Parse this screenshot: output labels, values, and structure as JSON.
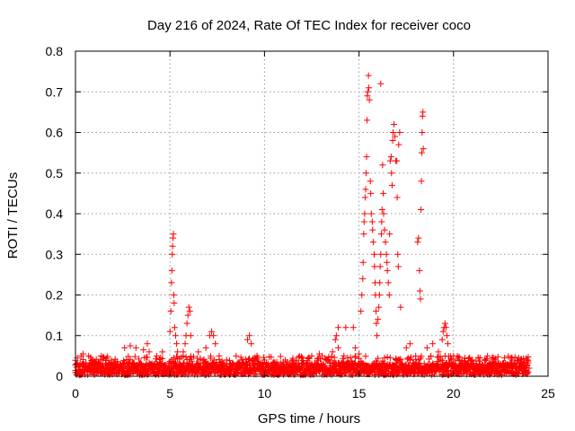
{
  "chart_data": {
    "type": "scatter",
    "title": "Day 216 of 2024, Rate Of TEC Index for receiver coco",
    "xlabel": "GPS time / hours",
    "ylabel": "ROTI / TECUs",
    "xlim": [
      0,
      25
    ],
    "ylim": [
      0,
      0.8
    ],
    "xticks": [
      0,
      5,
      10,
      15,
      20,
      25
    ],
    "yticks": [
      0,
      0.1,
      0.2,
      0.3,
      0.4,
      0.5,
      0.6,
      0.7,
      0.8
    ],
    "xtick_labels": [
      "0",
      "5",
      "10",
      "15",
      "20",
      "25"
    ],
    "ytick_labels": [
      "0",
      "0.1",
      "0.2",
      "0.3",
      "0.4",
      "0.5",
      "0.6",
      "0.7",
      "0.8"
    ],
    "grid": true,
    "marker": "+",
    "color": "#ff0000",
    "baseline": {
      "x_range": [
        0,
        24
      ],
      "typical_max": 0.03,
      "peak_max": 0.05
    },
    "points": [
      [
        0.05,
        0.03
      ],
      [
        0.4,
        0.055
      ],
      [
        0.7,
        0.05
      ],
      [
        1.2,
        0.035
      ],
      [
        1.8,
        0.03
      ],
      [
        2.6,
        0.07
      ],
      [
        2.9,
        0.075
      ],
      [
        3.2,
        0.07
      ],
      [
        3.6,
        0.065
      ],
      [
        3.8,
        0.08
      ],
      [
        3.9,
        0.06
      ],
      [
        4.3,
        0.05
      ],
      [
        4.6,
        0.06
      ],
      [
        5.0,
        0.11
      ],
      [
        5.05,
        0.16
      ],
      [
        5.08,
        0.23
      ],
      [
        5.1,
        0.26
      ],
      [
        5.12,
        0.3
      ],
      [
        5.14,
        0.32
      ],
      [
        5.16,
        0.34
      ],
      [
        5.18,
        0.35
      ],
      [
        5.2,
        0.2
      ],
      [
        5.22,
        0.18
      ],
      [
        5.25,
        0.12
      ],
      [
        5.3,
        0.1
      ],
      [
        5.35,
        0.08
      ],
      [
        5.4,
        0.06
      ],
      [
        5.7,
        0.06
      ],
      [
        5.8,
        0.08
      ],
      [
        5.85,
        0.1
      ],
      [
        5.9,
        0.13
      ],
      [
        5.95,
        0.15
      ],
      [
        6.0,
        0.17
      ],
      [
        6.05,
        0.16
      ],
      [
        6.1,
        0.1
      ],
      [
        6.5,
        0.06
      ],
      [
        6.9,
        0.07
      ],
      [
        7.1,
        0.1
      ],
      [
        7.2,
        0.11
      ],
      [
        7.3,
        0.1
      ],
      [
        7.4,
        0.08
      ],
      [
        7.6,
        0.05
      ],
      [
        8.0,
        0.04
      ],
      [
        8.5,
        0.05
      ],
      [
        9.1,
        0.09
      ],
      [
        9.2,
        0.1
      ],
      [
        9.3,
        0.08
      ],
      [
        9.6,
        0.05
      ],
      [
        10.0,
        0.04
      ],
      [
        10.5,
        0.035
      ],
      [
        11.0,
        0.035
      ],
      [
        11.5,
        0.04
      ],
      [
        12.0,
        0.045
      ],
      [
        12.5,
        0.05
      ],
      [
        12.9,
        0.055
      ],
      [
        13.3,
        0.04
      ],
      [
        13.6,
        0.06
      ],
      [
        13.75,
        0.09
      ],
      [
        13.8,
        0.1
      ],
      [
        13.9,
        0.07
      ],
      [
        14.2,
        0.05
      ],
      [
        14.4,
        0.045
      ],
      [
        13.9,
        0.12
      ],
      [
        14.3,
        0.12
      ],
      [
        14.7,
        0.12
      ],
      [
        14.8,
        0.07
      ],
      [
        15.0,
        0.055
      ],
      [
        15.1,
        0.16
      ],
      [
        15.15,
        0.2
      ],
      [
        15.2,
        0.24
      ],
      [
        15.22,
        0.28
      ],
      [
        15.25,
        0.35
      ],
      [
        15.27,
        0.38
      ],
      [
        15.3,
        0.4
      ],
      [
        15.32,
        0.44
      ],
      [
        15.35,
        0.46
      ],
      [
        15.37,
        0.5
      ],
      [
        15.4,
        0.54
      ],
      [
        15.42,
        0.63
      ],
      [
        15.44,
        0.69
      ],
      [
        15.46,
        0.7
      ],
      [
        15.5,
        0.74
      ],
      [
        15.52,
        0.71
      ],
      [
        15.55,
        0.68
      ],
      [
        15.6,
        0.48
      ],
      [
        15.62,
        0.45
      ],
      [
        15.65,
        0.4
      ],
      [
        15.7,
        0.38
      ],
      [
        15.72,
        0.36
      ],
      [
        15.75,
        0.33
      ],
      [
        15.8,
        0.3
      ],
      [
        15.82,
        0.27
      ],
      [
        15.85,
        0.23
      ],
      [
        15.87,
        0.2
      ],
      [
        15.9,
        0.16
      ],
      [
        15.92,
        0.13
      ],
      [
        15.95,
        0.1
      ],
      [
        16.0,
        0.14
      ],
      [
        16.05,
        0.17
      ],
      [
        16.08,
        0.2
      ],
      [
        16.1,
        0.23
      ],
      [
        16.12,
        0.27
      ],
      [
        16.15,
        0.3
      ],
      [
        16.18,
        0.35
      ],
      [
        16.2,
        0.38
      ],
      [
        16.22,
        0.41
      ],
      [
        16.25,
        0.52
      ],
      [
        16.28,
        0.45
      ],
      [
        16.3,
        0.4
      ],
      [
        16.15,
        0.72
      ],
      [
        16.35,
        0.36
      ],
      [
        16.4,
        0.33
      ],
      [
        16.45,
        0.3
      ],
      [
        16.48,
        0.28
      ],
      [
        16.5,
        0.26
      ],
      [
        16.55,
        0.23
      ],
      [
        16.6,
        0.2
      ],
      [
        16.62,
        0.35
      ],
      [
        16.65,
        0.53
      ],
      [
        16.7,
        0.54
      ],
      [
        16.72,
        0.5
      ],
      [
        16.75,
        0.47
      ],
      [
        16.78,
        0.58
      ],
      [
        16.8,
        0.6
      ],
      [
        16.85,
        0.62
      ],
      [
        16.9,
        0.59
      ],
      [
        16.95,
        0.53
      ],
      [
        17.0,
        0.53
      ],
      [
        17.02,
        0.44
      ],
      [
        17.05,
        0.3
      ],
      [
        17.08,
        0.27
      ],
      [
        17.1,
        0.57
      ],
      [
        17.15,
        0.6
      ],
      [
        17.2,
        0.17
      ],
      [
        17.5,
        0.07
      ],
      [
        17.7,
        0.08
      ],
      [
        18.0,
        0.05
      ],
      [
        18.1,
        0.33
      ],
      [
        18.15,
        0.34
      ],
      [
        18.2,
        0.26
      ],
      [
        18.22,
        0.21
      ],
      [
        18.25,
        0.19
      ],
      [
        18.28,
        0.41
      ],
      [
        18.3,
        0.48
      ],
      [
        18.32,
        0.55
      ],
      [
        18.34,
        0.6
      ],
      [
        18.36,
        0.64
      ],
      [
        18.38,
        0.65
      ],
      [
        18.4,
        0.56
      ],
      [
        18.6,
        0.07
      ],
      [
        18.9,
        0.08
      ],
      [
        19.2,
        0.06
      ],
      [
        19.4,
        0.09
      ],
      [
        19.45,
        0.11
      ],
      [
        19.5,
        0.12
      ],
      [
        19.55,
        0.13
      ],
      [
        19.6,
        0.12
      ],
      [
        19.65,
        0.1
      ],
      [
        19.7,
        0.08
      ],
      [
        20.0,
        0.05
      ],
      [
        20.3,
        0.04
      ],
      [
        20.6,
        0.045
      ],
      [
        21.0,
        0.04
      ],
      [
        21.4,
        0.045
      ],
      [
        21.8,
        0.05
      ],
      [
        22.2,
        0.04
      ],
      [
        22.7,
        0.045
      ],
      [
        23.1,
        0.04
      ],
      [
        23.5,
        0.035
      ],
      [
        23.9,
        0.04
      ],
      [
        24.0,
        0.02
      ]
    ]
  }
}
